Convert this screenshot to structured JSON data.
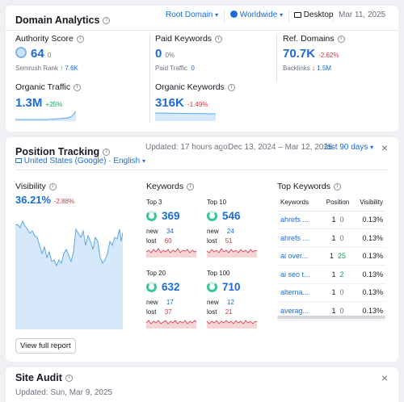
{
  "domain_analytics": {
    "title": "Domain Analytics",
    "database": "Root Domain",
    "region": "Worldwide",
    "device": "Desktop",
    "date": "Mar 11, 2025",
    "authority_score": {
      "label": "Authority Score",
      "value": "64",
      "delta": "0",
      "rank_label": "Semrush Rank",
      "rank_value": "7.6K"
    },
    "paid_keywords": {
      "label": "Paid Keywords",
      "value": "0",
      "delta": "0%",
      "traffic_label": "Paid Traffic",
      "traffic_value": "0"
    },
    "ref_domains": {
      "label": "Ref. Domains",
      "value": "70.7K",
      "delta": "-2.62%",
      "backlinks_label": "Backlinks",
      "backlinks_value": "1.5M"
    },
    "organic_traffic": {
      "label": "Organic Traffic",
      "value": "1.3M",
      "delta": "+25%"
    },
    "organic_keywords": {
      "label": "Organic Keywords",
      "value": "316K",
      "delta": "-1.49%"
    }
  },
  "position_tracking": {
    "title": "Position Tracking",
    "updated": "Updated: 17 hours ago",
    "range": "Dec 13, 2024 – Mar 12, 2025",
    "period": "last 90 days",
    "location": "United States (Google) · English",
    "visibility": {
      "label": "Visibility",
      "value": "36.21%",
      "delta": "-2.88%"
    },
    "keywords_title": "Keywords",
    "groups": [
      {
        "title": "Top 3",
        "value": "369",
        "new_label": "new",
        "new": "34",
        "lost_label": "lost",
        "lost": "60"
      },
      {
        "title": "Top 10",
        "value": "546",
        "new_label": "new",
        "new": "24",
        "lost_label": "lost",
        "lost": "51"
      },
      {
        "title": "Top 20",
        "value": "632",
        "new_label": "new",
        "new": "17",
        "lost_label": "lost",
        "lost": "37"
      },
      {
        "title": "Top 100",
        "value": "710",
        "new_label": "new",
        "new": "12",
        "lost_label": "lost",
        "lost": "21"
      }
    ],
    "top_keywords": {
      "title": "Top Keywords",
      "columns": [
        "Keywords",
        "Position",
        "Visibility"
      ],
      "rows": [
        {
          "keyword": "ahrefs ...",
          "position": "1",
          "change": "0",
          "visibility": "0.13%"
        },
        {
          "keyword": "ahrefs ...",
          "position": "1",
          "change": "0",
          "visibility": "0.13%"
        },
        {
          "keyword": "ai over...",
          "position": "1",
          "change": "25",
          "visibility": "0.13%"
        },
        {
          "keyword": "ai seo t...",
          "position": "1",
          "change": "2",
          "visibility": "0.13%"
        },
        {
          "keyword": "alterna...",
          "position": "1",
          "change": "0",
          "visibility": "0.13%"
        },
        {
          "keyword": "averag...",
          "position": "1",
          "change": "0",
          "visibility": "0.13%"
        }
      ]
    },
    "view_report": "View full report"
  },
  "site_audit": {
    "title": "Site Audit",
    "updated": "Updated: Sun, Mar 9, 2025"
  },
  "colors": {
    "accent": "#1b6cd8",
    "positive": "#0f9d58",
    "negative": "#d4343e",
    "donut": "#37c598",
    "area": "#d5e9fb"
  }
}
